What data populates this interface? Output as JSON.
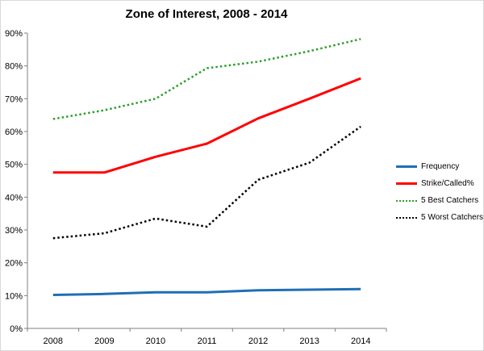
{
  "chart_data": {
    "type": "line",
    "title": "Zone of Interest, 2008 - 2014",
    "xlabel": "",
    "ylabel": "",
    "categories": [
      "2008",
      "2009",
      "2010",
      "2011",
      "2012",
      "2013",
      "2014"
    ],
    "ylim": [
      0,
      90
    ],
    "yticks": [
      "0%",
      "10%",
      "20%",
      "30%",
      "40%",
      "50%",
      "60%",
      "70%",
      "80%",
      "90%"
    ],
    "grid": false,
    "legend_position": "right",
    "series": [
      {
        "name": "Frequency",
        "values": [
          10.2,
          10.5,
          11.0,
          11.0,
          11.6,
          11.8,
          12.0
        ],
        "color": "#1f6fb5",
        "style": "solid"
      },
      {
        "name": "Strike/Called%",
        "values": [
          47.5,
          47.5,
          52.3,
          56.3,
          64.0,
          70.0,
          76.2
        ],
        "color": "#ff0000",
        "style": "solid"
      },
      {
        "name": "5 Best Catchers",
        "values": [
          63.8,
          66.5,
          70.0,
          79.3,
          81.3,
          84.5,
          88.2
        ],
        "color": "#2ca02c",
        "style": "dotted"
      },
      {
        "name": "5 Worst Catchers",
        "values": [
          27.5,
          29.0,
          33.5,
          31.0,
          45.3,
          50.5,
          61.5
        ],
        "color": "#000000",
        "style": "dotted"
      }
    ]
  }
}
